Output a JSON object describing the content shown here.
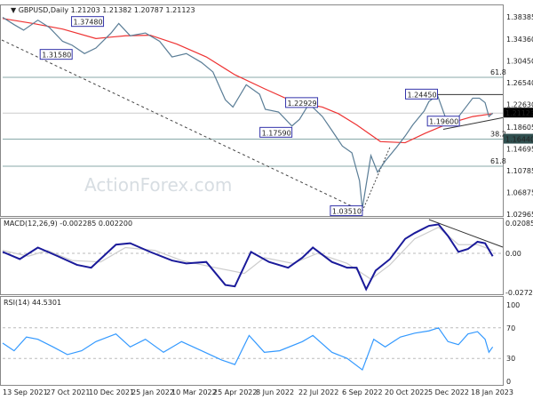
{
  "chart_data": [
    {
      "type": "line",
      "panel": "price",
      "title": "GBPUSD,Daily",
      "ohlc_header": "1.21203 1.21382 1.20787 1.21123",
      "yticks": [
        1.38385,
        1.3436,
        1.3045,
        1.2654,
        1.2263,
        1.18605,
        1.14695,
        1.10785,
        1.06875,
        1.02965
      ],
      "ylim": [
        1.02,
        1.4005
      ],
      "current_price": "1.21123",
      "marked_level": "1.16440",
      "series": [
        {
          "color": "#5a7d96",
          "points": [
            [
              "2021-09-13",
              1.383
            ],
            [
              "2021-09-25",
              1.37
            ],
            [
              "2021-10-05",
              1.36
            ],
            [
              "2021-10-20",
              1.378
            ],
            [
              "2021-11-01",
              1.365
            ],
            [
              "2021-11-15",
              1.34
            ],
            [
              "2021-11-25",
              1.333
            ],
            [
              "2021-12-08",
              1.318
            ],
            [
              "2021-12-20",
              1.328
            ],
            [
              "2022-01-05",
              1.355
            ],
            [
              "2022-01-13",
              1.372
            ],
            [
              "2022-01-25",
              1.35
            ],
            [
              "2022-02-10",
              1.355
            ],
            [
              "2022-02-25",
              1.34
            ],
            [
              "2022-03-10",
              1.312
            ],
            [
              "2022-03-25",
              1.318
            ],
            [
              "2022-04-10",
              1.302
            ],
            [
              "2022-04-22",
              1.285
            ],
            [
              "2022-05-05",
              1.235
            ],
            [
              "2022-05-13",
              1.222
            ],
            [
              "2022-05-27",
              1.262
            ],
            [
              "2022-06-10",
              1.245
            ],
            [
              "2022-06-16",
              1.218
            ],
            [
              "2022-06-30",
              1.213
            ],
            [
              "2022-07-14",
              1.188
            ],
            [
              "2022-07-22",
              1.2
            ],
            [
              "2022-08-01",
              1.228
            ],
            [
              "2022-08-15",
              1.205
            ],
            [
              "2022-08-25",
              1.18
            ],
            [
              "2022-09-05",
              1.152
            ],
            [
              "2022-09-15",
              1.14
            ],
            [
              "2022-09-23",
              1.09
            ],
            [
              "2022-09-26",
              1.04
            ],
            [
              "2022-10-05",
              1.135
            ],
            [
              "2022-10-12",
              1.105
            ],
            [
              "2022-10-20",
              1.125
            ],
            [
              "2022-11-01",
              1.15
            ],
            [
              "2022-11-10",
              1.17
            ],
            [
              "2022-11-18",
              1.19
            ],
            [
              "2022-11-30",
              1.215
            ],
            [
              "2022-12-05",
              1.232
            ],
            [
              "2022-12-14",
              1.243
            ],
            [
              "2022-12-22",
              1.205
            ],
            [
              "2023-01-03",
              1.2
            ],
            [
              "2023-01-12",
              1.22
            ],
            [
              "2023-01-20",
              1.238
            ],
            [
              "2023-01-27",
              1.238
            ],
            [
              "2023-02-02",
              1.23
            ],
            [
              "2023-02-06",
              1.205
            ],
            [
              "2023-02-10",
              1.211
            ]
          ]
        },
        {
          "color": "#ee3333",
          "points": [
            [
              "2021-09-13",
              1.381
            ],
            [
              "2021-10-15",
              1.372
            ],
            [
              "2021-11-15",
              1.362
            ],
            [
              "2021-12-20",
              1.345
            ],
            [
              "2022-01-20",
              1.35
            ],
            [
              "2022-02-15",
              1.351
            ],
            [
              "2022-03-15",
              1.335
            ],
            [
              "2022-04-15",
              1.312
            ],
            [
              "2022-05-15",
              1.28
            ],
            [
              "2022-06-15",
              1.255
            ],
            [
              "2022-07-15",
              1.232
            ],
            [
              "2022-08-15",
              1.222
            ],
            [
              "2022-09-01",
              1.21
            ],
            [
              "2022-09-20",
              1.19
            ],
            [
              "2022-10-15",
              1.16
            ],
            [
              "2022-11-10",
              1.158
            ],
            [
              "2022-12-01",
              1.175
            ],
            [
              "2022-12-25",
              1.192
            ],
            [
              "2023-01-20",
              1.205
            ],
            [
              "2023-02-10",
              1.21
            ]
          ]
        }
      ],
      "levels": [
        {
          "value": 1.2754,
          "label": "61.8"
        },
        {
          "value": 1.1644,
          "label": "38.2"
        },
        {
          "value": 1.1158,
          "label": "61.8"
        },
        {
          "value": 1.2112,
          "label": ""
        }
      ],
      "annotations": [
        [
          "2021-12-28",
          1.3748,
          "1.37480"
        ],
        [
          "2021-11-25",
          1.3158,
          "1.31580"
        ],
        [
          "2022-08-10",
          1.22929,
          "1.22929"
        ],
        [
          "2022-07-14",
          1.1759,
          "1.17590"
        ],
        [
          "2022-09-26",
          1.0351,
          "1.03510"
        ],
        [
          "2022-12-14",
          1.2445,
          "1.24450"
        ],
        [
          "2023-01-06",
          1.196,
          "1.19600"
        ]
      ],
      "watermark": "ActionForex.com"
    },
    {
      "type": "line",
      "panel": "macd",
      "title": "MACD(12,26,9) -0.002285 0.002200",
      "yticks": [
        "0.020858",
        "0.00",
        "-0.027213"
      ],
      "ylim": [
        -0.0285,
        0.0245
      ],
      "series": [
        {
          "color": "#1a1a9a",
          "points": [
            [
              "2021-09-13",
              0.001
            ],
            [
              "2021-10-01",
              -0.004
            ],
            [
              "2021-10-20",
              0.004
            ],
            [
              "2021-11-10",
              -0.002
            ],
            [
              "2021-11-30",
              -0.008
            ],
            [
              "2021-12-15",
              -0.01
            ],
            [
              "2022-01-10",
              0.006
            ],
            [
              "2022-01-25",
              0.007
            ],
            [
              "2022-02-15",
              0.001
            ],
            [
              "2022-03-10",
              -0.005
            ],
            [
              "2022-03-25",
              -0.007
            ],
            [
              "2022-04-15",
              -0.006
            ],
            [
              "2022-05-05",
              -0.022
            ],
            [
              "2022-05-15",
              -0.023
            ],
            [
              "2022-06-01",
              0.001
            ],
            [
              "2022-06-20",
              -0.006
            ],
            [
              "2022-07-10",
              -0.01
            ],
            [
              "2022-07-25",
              -0.003
            ],
            [
              "2022-08-05",
              0.004
            ],
            [
              "2022-08-25",
              -0.006
            ],
            [
              "2022-09-10",
              -0.01
            ],
            [
              "2022-09-20",
              -0.01
            ],
            [
              "2022-09-30",
              -0.025
            ],
            [
              "2022-10-10",
              -0.012
            ],
            [
              "2022-10-25",
              -0.004
            ],
            [
              "2022-11-10",
              0.01
            ],
            [
              "2022-11-20",
              0.014
            ],
            [
              "2022-12-05",
              0.019
            ],
            [
              "2022-12-15",
              0.02
            ],
            [
              "2022-12-25",
              0.012
            ],
            [
              "2023-01-05",
              0.001
            ],
            [
              "2023-01-15",
              0.003
            ],
            [
              "2023-01-25",
              0.008
            ],
            [
              "2023-02-02",
              0.007
            ],
            [
              "2023-02-10",
              -0.002
            ]
          ]
        },
        {
          "color": "#cccccc",
          "points": [
            [
              "2021-09-13",
              0.002
            ],
            [
              "2021-10-10",
              -0.002
            ],
            [
              "2021-10-30",
              0.002
            ],
            [
              "2021-11-25",
              -0.005
            ],
            [
              "2021-12-25",
              -0.006
            ],
            [
              "2022-01-20",
              0.004
            ],
            [
              "2022-02-20",
              0.002
            ],
            [
              "2022-03-20",
              -0.005
            ],
            [
              "2022-04-25",
              -0.01
            ],
            [
              "2022-05-25",
              -0.014
            ],
            [
              "2022-06-15",
              -0.003
            ],
            [
              "2022-07-15",
              -0.007
            ],
            [
              "2022-08-10",
              0.0
            ],
            [
              "2022-09-10",
              -0.007
            ],
            [
              "2022-10-05",
              -0.018
            ],
            [
              "2022-10-25",
              -0.008
            ],
            [
              "2022-11-20",
              0.01
            ],
            [
              "2022-12-15",
              0.018
            ],
            [
              "2023-01-05",
              0.006
            ],
            [
              "2023-01-25",
              0.006
            ],
            [
              "2023-02-10",
              0.002
            ]
          ]
        }
      ]
    },
    {
      "type": "line",
      "panel": "rsi",
      "title": "RSI(14) 44.5301",
      "yticks": [
        "100",
        "70",
        "30",
        "0"
      ],
      "ylim": [
        0,
        100
      ],
      "series": [
        {
          "color": "#3399ff",
          "points": [
            [
              "2021-09-13",
              50
            ],
            [
              "2021-09-25",
              40
            ],
            [
              "2021-10-08",
              58
            ],
            [
              "2021-10-20",
              55
            ],
            [
              "2021-11-05",
              45
            ],
            [
              "2021-11-20",
              35
            ],
            [
              "2021-12-05",
              40
            ],
            [
              "2021-12-20",
              52
            ],
            [
              "2022-01-10",
              62
            ],
            [
              "2022-01-25",
              45
            ],
            [
              "2022-02-10",
              55
            ],
            [
              "2022-03-01",
              38
            ],
            [
              "2022-03-20",
              52
            ],
            [
              "2022-04-10",
              40
            ],
            [
              "2022-05-01",
              28
            ],
            [
              "2022-05-15",
              22
            ],
            [
              "2022-05-30",
              60
            ],
            [
              "2022-06-15",
              38
            ],
            [
              "2022-07-01",
              40
            ],
            [
              "2022-07-25",
              52
            ],
            [
              "2022-08-05",
              60
            ],
            [
              "2022-08-25",
              38
            ],
            [
              "2022-09-10",
              30
            ],
            [
              "2022-09-26",
              15
            ],
            [
              "2022-10-08",
              55
            ],
            [
              "2022-10-20",
              45
            ],
            [
              "2022-11-05",
              58
            ],
            [
              "2022-11-20",
              63
            ],
            [
              "2022-12-05",
              66
            ],
            [
              "2022-12-15",
              70
            ],
            [
              "2022-12-25",
              52
            ],
            [
              "2023-01-05",
              48
            ],
            [
              "2023-01-15",
              62
            ],
            [
              "2023-01-25",
              65
            ],
            [
              "2023-02-02",
              55
            ],
            [
              "2023-02-06",
              38
            ],
            [
              "2023-02-10",
              45
            ]
          ]
        }
      ]
    },
    {
      "xticks": [
        "13 Sep 2021",
        "27 Oct 2021",
        "10 Dec 2021",
        "25 Jan 2022",
        "10 Mar 2022",
        "25 Apr 2022",
        "8 Jun 2022",
        "22 Jul 2022",
        "6 Sep 2022",
        "20 Oct 2022",
        "5 Dec 2022",
        "18 Jan 2023"
      ]
    }
  ]
}
